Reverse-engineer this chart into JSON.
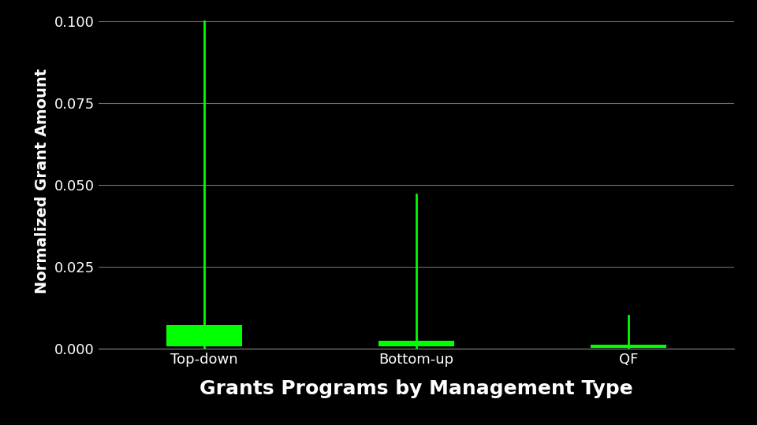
{
  "categories": [
    "Top-down",
    "Bottom-up",
    "QF"
  ],
  "box_stats": [
    {
      "whislo": 0.0,
      "q1": 0.001,
      "med": 0.003,
      "q3": 0.007,
      "whishi": 0.1
    },
    {
      "whislo": 0.0,
      "q1": 0.001,
      "med": 0.0015,
      "q3": 0.002,
      "whishi": 0.047
    },
    {
      "whislo": 0.0,
      "q1": 0.0004,
      "med": 0.0006,
      "q3": 0.001,
      "whishi": 0.01
    }
  ],
  "ylim": [
    0.0,
    0.1025
  ],
  "yticks": [
    0.0,
    0.025,
    0.05,
    0.075,
    0.1
  ],
  "ylabel": "Normalized Grant Amount",
  "xlabel": "Grants Programs by Management Type",
  "bg_color": "#000000",
  "box_color": "#00FF00",
  "median_color": "#00FF00",
  "whisker_color": "#00FF00",
  "grid_color": "#888888",
  "text_color": "#FFFFFF",
  "xlabel_fontsize": 18,
  "ylabel_fontsize": 14,
  "tick_fontsize": 13,
  "box_width": 0.35,
  "positions": [
    1,
    2,
    3
  ],
  "xlim": [
    0.5,
    3.5
  ]
}
